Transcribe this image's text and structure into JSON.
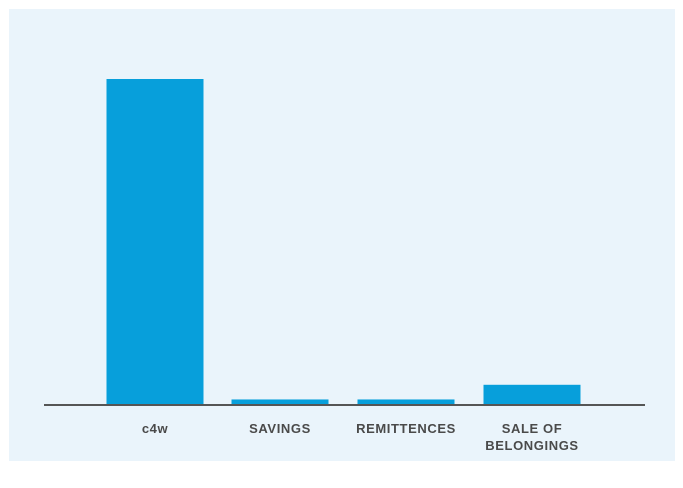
{
  "chart_data": {
    "type": "bar",
    "title": "",
    "xlabel": "",
    "ylabel": "",
    "categories": [
      [
        "c4w"
      ],
      [
        "SAVINGS"
      ],
      [
        "REMITTENCES"
      ],
      [
        "SALE OF",
        "BELONGINGS"
      ]
    ],
    "values": [
      100,
      1.7,
      1.7,
      6.2
    ],
    "ylim": [
      0,
      100
    ],
    "grid": false,
    "legend": "none",
    "bar_color": "#079FDB",
    "axis_color": "#555555",
    "panel_color": "#EAF4FB"
  }
}
